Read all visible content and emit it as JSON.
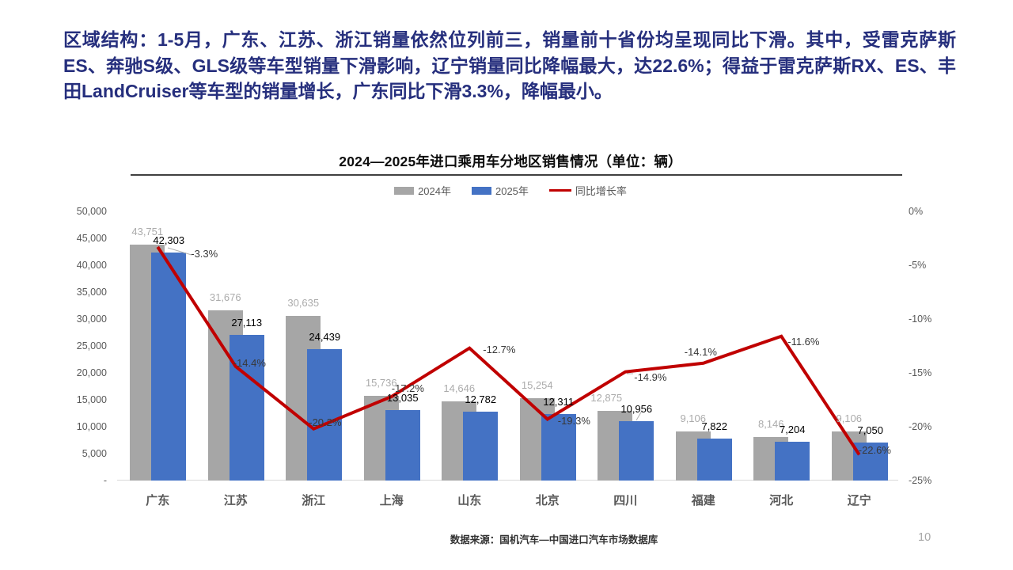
{
  "slide": {
    "header_text": "区域结构：1-5月，广东、江苏、浙江销量依然位列前三，销量前十省份均呈现同比下滑。其中，受雷克萨斯ES、奔驰S级、GLS级等车型销量下滑影响，辽宁销量同比降幅最大，达22.6%；得益于雷克萨斯RX、ES、丰田LandCruiser等车型的销量增长，广东同比下滑3.3%，降幅最小。",
    "footer_source": "数据来源：国机汽车—中国进口汽车市场数据库",
    "page_number": "10"
  },
  "chart_data": {
    "type": "bar",
    "title": "2024—2025年进口乘用车分地区销售情况（单位：辆）",
    "categories": [
      "广东",
      "江苏",
      "浙江",
      "上海",
      "山东",
      "北京",
      "四川",
      "福建",
      "河北",
      "辽宁"
    ],
    "series": [
      {
        "name": "2024年",
        "type": "bar",
        "color": "#A6A6A6",
        "label_color": "#ABABAB",
        "values": [
          43751,
          31676,
          30635,
          15736,
          14646,
          15254,
          12875,
          9106,
          8146,
          9106
        ],
        "labels": [
          "43,751",
          "31,676",
          "30,635",
          "15,736",
          "14,646",
          "15,254",
          "12,875",
          "9,106",
          "8,146",
          "9,106"
        ]
      },
      {
        "name": "2025年",
        "type": "bar",
        "color": "#4472C4",
        "label_color": "#000000",
        "values": [
          42303,
          27113,
          24439,
          13035,
          12782,
          12311,
          10956,
          7822,
          7204,
          7050
        ],
        "labels": [
          "42,303",
          "27,113",
          "24,439",
          "13,035",
          "12,782",
          "12,311",
          "10,956",
          "7,822",
          "7,204",
          "7,050"
        ]
      },
      {
        "name": "同比增长率",
        "type": "line",
        "color": "#C00000",
        "values": [
          -3.3,
          -14.4,
          -20.2,
          -17.2,
          -12.7,
          -19.3,
          -14.9,
          -14.1,
          -11.6,
          -22.6
        ],
        "labels": [
          "-3.3%",
          "-14.4%",
          "-20.2%",
          "-17.2%",
          "-12.7%",
          "-19.3%",
          "-14.9%",
          "-14.1%",
          "-11.6%",
          "-22.6%"
        ]
      }
    ],
    "left_axis": {
      "min": 0,
      "max": 50000,
      "step": 5000,
      "tick_labels": [
        "50,000",
        "45,000",
        "40,000",
        "35,000",
        "30,000",
        "25,000",
        "20,000",
        "15,000",
        "10,000",
        "5,000",
        "-"
      ]
    },
    "right_axis": {
      "min": -25,
      "max": 0,
      "step": 5,
      "tick_labels": [
        "0%",
        "-5%",
        "-10%",
        "-15%",
        "-20%",
        "-25%"
      ]
    },
    "legend_position": "top",
    "grid": false
  }
}
